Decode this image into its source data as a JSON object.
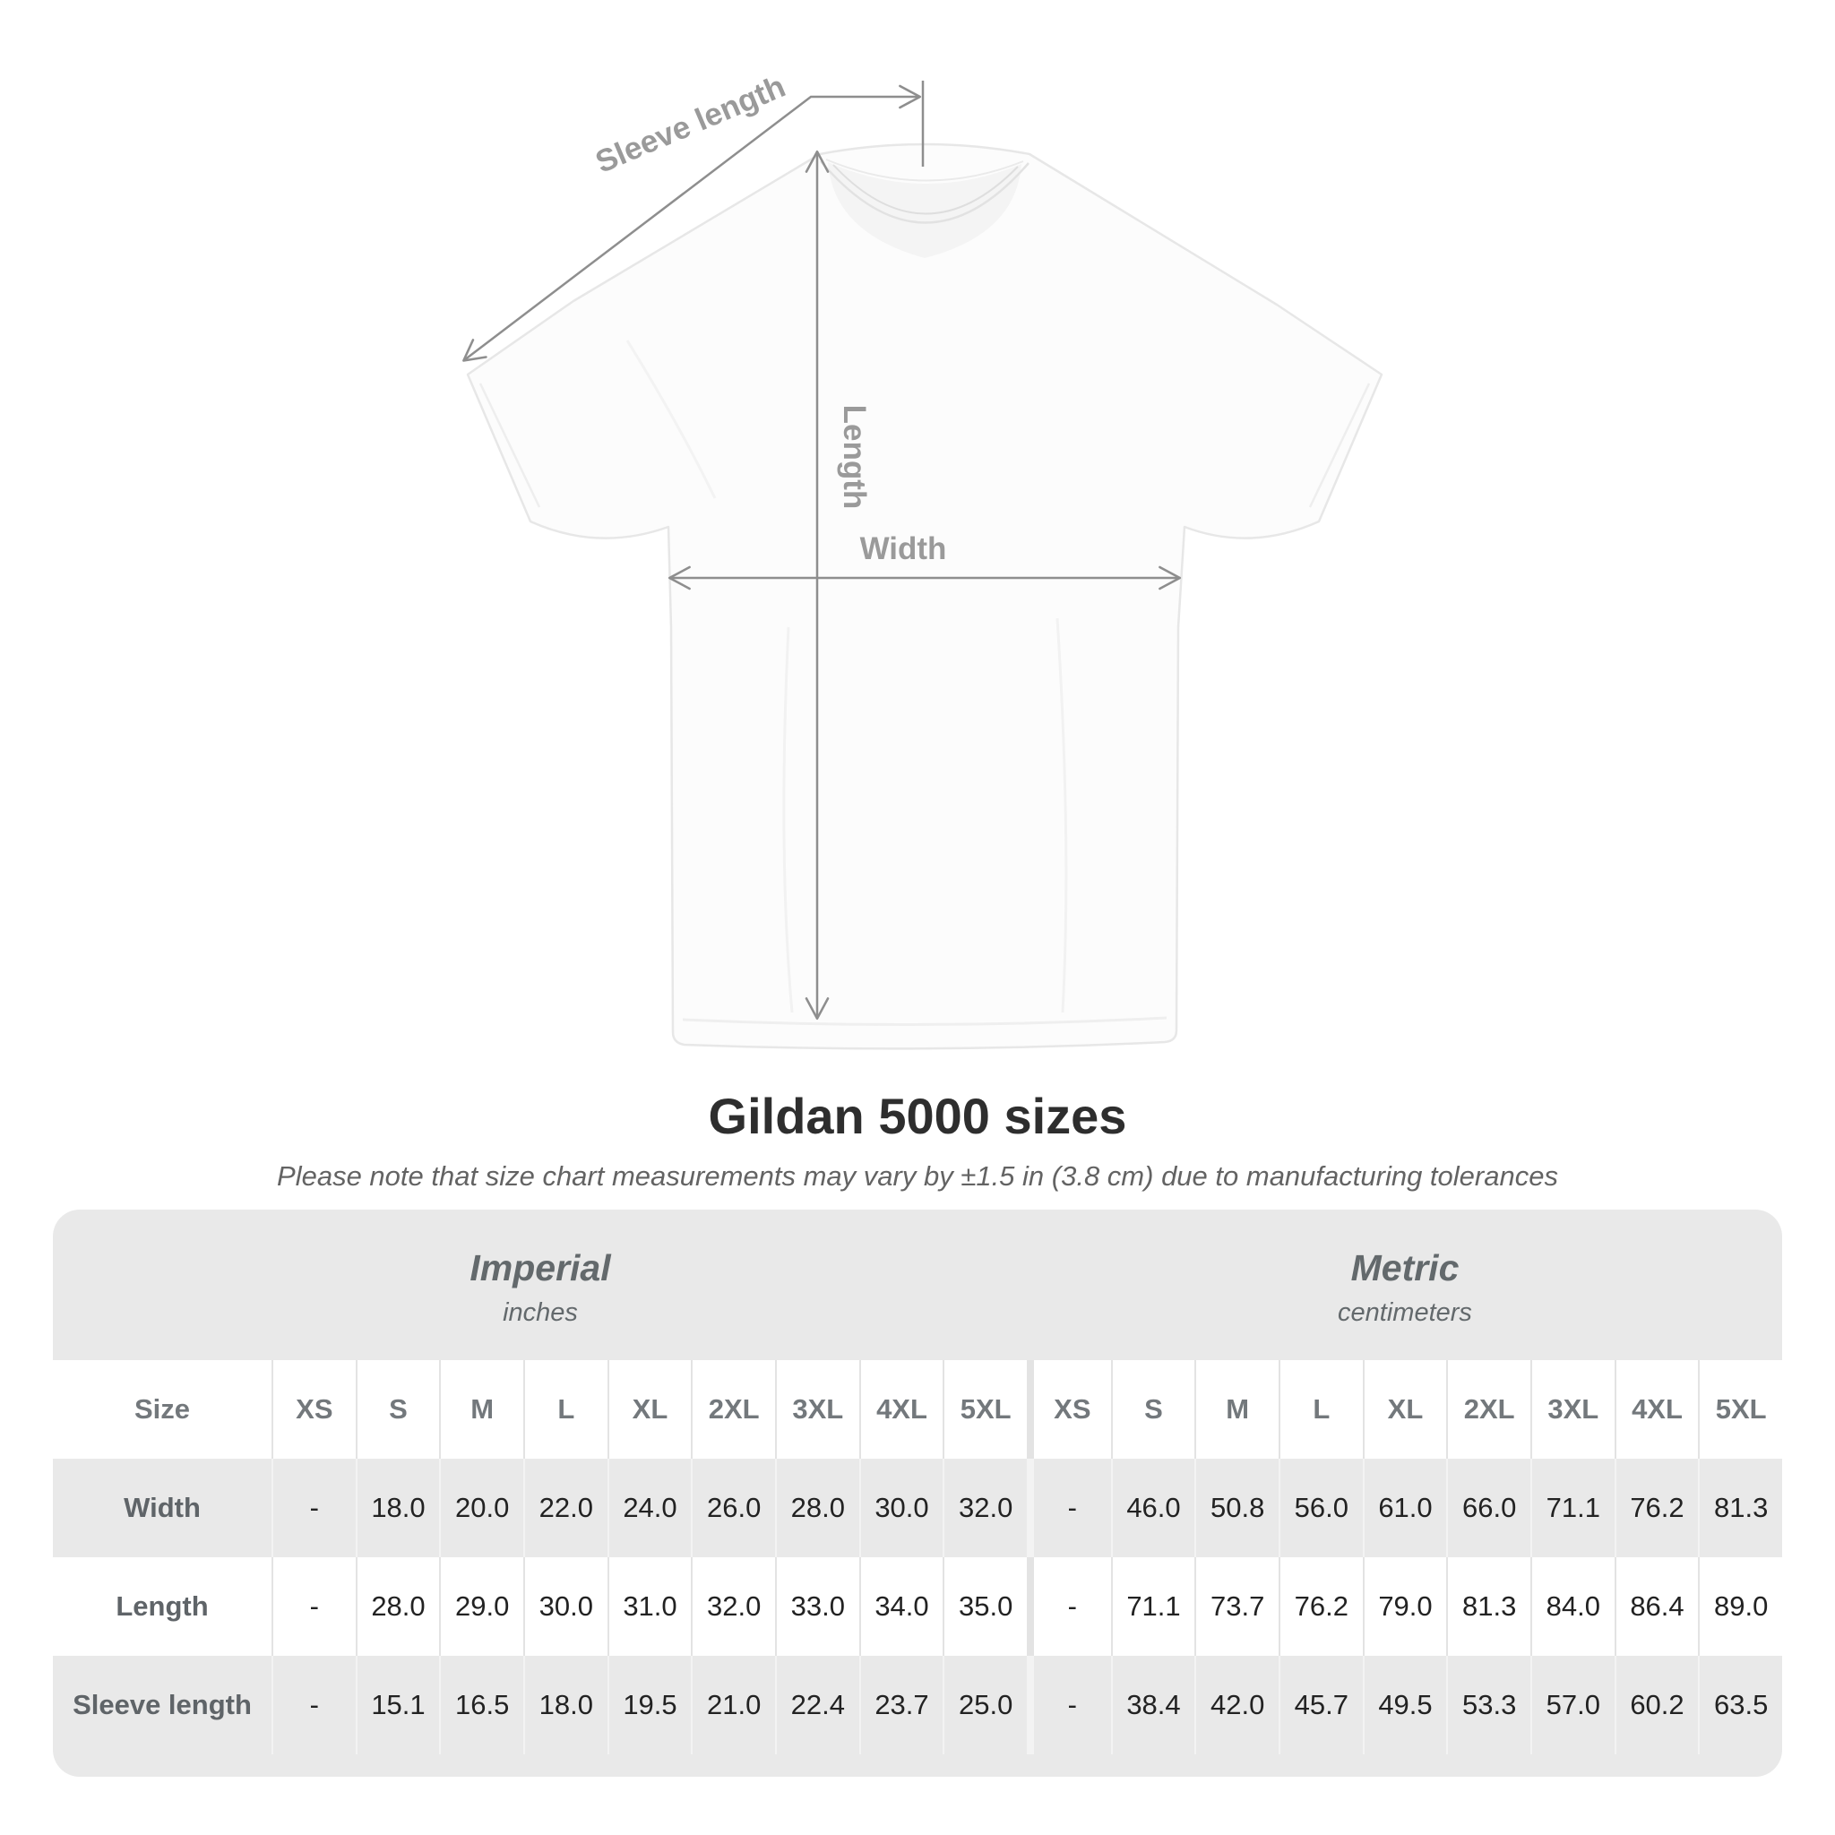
{
  "diagram": {
    "sleeve_label": "Sleeve length",
    "length_label": "Length",
    "width_label": "Width"
  },
  "title": "Gildan 5000 sizes",
  "subtitle": "Please note that size chart measurements may vary by ±1.5 in (3.8 cm) due to manufacturing tolerances",
  "table": {
    "size_header": "Size",
    "groups": [
      {
        "name": "Imperial",
        "unit": "inches"
      },
      {
        "name": "Metric",
        "unit": "centimeters"
      }
    ],
    "sizes": [
      "XS",
      "S",
      "M",
      "L",
      "XL",
      "2XL",
      "3XL",
      "4XL",
      "5XL"
    ],
    "rows": [
      {
        "label": "Width",
        "imperial": [
          "-",
          "18.0",
          "20.0",
          "22.0",
          "24.0",
          "26.0",
          "28.0",
          "30.0",
          "32.0"
        ],
        "metric": [
          "-",
          "46.0",
          "50.8",
          "56.0",
          "61.0",
          "66.0",
          "71.1",
          "76.2",
          "81.3"
        ]
      },
      {
        "label": "Length",
        "imperial": [
          "-",
          "28.0",
          "29.0",
          "30.0",
          "31.0",
          "32.0",
          "33.0",
          "34.0",
          "35.0"
        ],
        "metric": [
          "-",
          "71.1",
          "73.7",
          "76.2",
          "79.0",
          "81.3",
          "84.0",
          "86.4",
          "89.0"
        ]
      },
      {
        "label": "Sleeve length",
        "imperial": [
          "-",
          "15.1",
          "16.5",
          "18.0",
          "19.5",
          "21.0",
          "22.4",
          "23.7",
          "25.0"
        ],
        "metric": [
          "-",
          "38.4",
          "42.0",
          "45.7",
          "49.5",
          "53.3",
          "57.0",
          "60.2",
          "63.5"
        ]
      }
    ]
  },
  "colors": {
    "table_bg": "#e9e9e9",
    "dimension_line": "#8e8e8e",
    "dimension_label": "#9a9a9a",
    "value_ink": "#222222"
  }
}
